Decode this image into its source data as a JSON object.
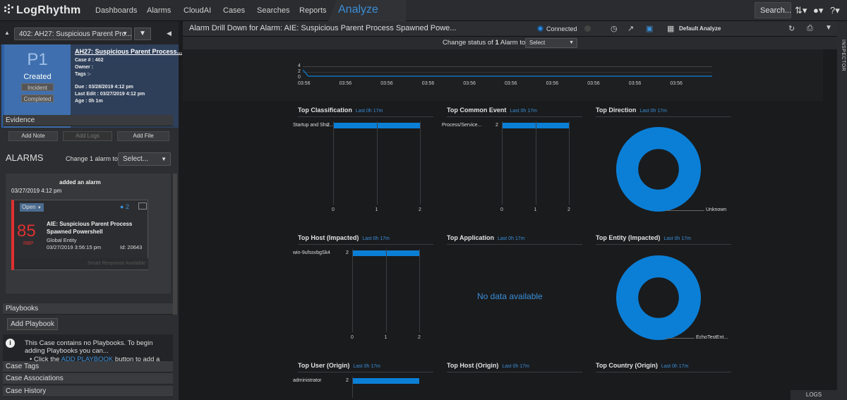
{
  "app": {
    "logo_text": "LogRhythm",
    "nav": [
      "Dashboards",
      "Alarms",
      "CloudAI",
      "Cases",
      "Searches",
      "Reports"
    ],
    "active_tab": "Analyze",
    "search_label": "Search..."
  },
  "sidebar": {
    "case_select": "402: AH27: Suspicious Parent Pro...",
    "case": {
      "priority": "P1",
      "status": "Created",
      "tag1": "Incident",
      "tag2": "Completed",
      "title": "AH27: Suspicious Parent Process...",
      "case_no": "Case # : 402",
      "owner": "Owner :",
      "tags": "Tags :-",
      "due": "Due : 03/28/2019 4:12 pm",
      "last_edit": "Last Edit : 03/27/2019 4:12 pm",
      "age": "Age : 0h 1m"
    },
    "evidence_label": "Evidence",
    "add_note": "Add Note",
    "add_logs": "Add Logs",
    "add_file": "Add File",
    "alarms_title": "ALARMS",
    "change_label": "Change 1 alarm to",
    "change_select": "Select...",
    "alarm_entry": {
      "action": "added an alarm",
      "date": "03/27/2019 4:12 pm",
      "status": "Open",
      "comments": "2",
      "score": "85",
      "score_label": "RBP",
      "name": "AIE: Suspicious Parent Process Spawned Powershell",
      "entity": "Global Entity",
      "timestamp": "03/27/2019 3:56:15 pm",
      "id_label": "Id: 20643",
      "footer": "Smart Response Available"
    },
    "playbooks_label": "Playbooks",
    "add_playbook": "Add Playbook",
    "playbook_info": "This Case contains no Playbooks. To begin adding Playbooks you can...",
    "playbook_bullet_pre": "Click the ",
    "playbook_link": "ADD PLAYBOOK",
    "playbook_bullet_post": " button to add a",
    "case_tags": "Case Tags",
    "case_assoc": "Case Associations",
    "case_history": "Case History"
  },
  "main": {
    "title": "Alarm Drill Down for Alarm: AIE: Suspicious Parent Process Spawned Powe...",
    "connected": "Connected",
    "default_analyze": "Default Analyze",
    "change_status_pre": "Change status of ",
    "change_status_count": "1",
    "change_status_post": " Alarm to",
    "status_select": "Select",
    "timeline": {
      "y_ticks": [
        "4",
        "2",
        "0"
      ],
      "x_ticks": [
        "03:56",
        "03:56",
        "03:56",
        "03:56",
        "03:56",
        "03:56",
        "03:56",
        "03:56",
        "03:56",
        "03:56"
      ]
    },
    "no_data": "No data available",
    "widgets": [
      {
        "title": "Top Classification",
        "sub": "Last 0h 17m"
      },
      {
        "title": "Top Common Event",
        "sub": "Last 0h 17m"
      },
      {
        "title": "Top Direction",
        "sub": "Last 0h 17m"
      },
      {
        "title": "Top Host (Impacted)",
        "sub": "Last 0h 17m"
      },
      {
        "title": "Top Application",
        "sub": "Last 0h 17m"
      },
      {
        "title": "Top Entity (Impacted)",
        "sub": "Last 0h 17m"
      },
      {
        "title": "Top User (Origin)",
        "sub": "Last 0h 17m"
      },
      {
        "title": "Top Host (Origin)",
        "sub": "Last 0h 17m"
      },
      {
        "title": "Top Country (Origin)",
        "sub": "Last 0h 17m"
      }
    ]
  },
  "inspector_label": "INSPECTOR",
  "logs_label": "LOGS",
  "colors": {
    "accent": "#0b7fd6",
    "case_red": "#e03030"
  },
  "chart_data": [
    {
      "type": "bar",
      "title": "Top Classification",
      "categories": [
        "Startup and Shu..."
      ],
      "values": [
        2
      ],
      "xlim": [
        0,
        2
      ],
      "x_ticks": [
        "0",
        "1",
        "2"
      ]
    },
    {
      "type": "bar",
      "title": "Top Common Event",
      "categories": [
        "Process/Service..."
      ],
      "values": [
        2
      ],
      "xlim": [
        0,
        2
      ],
      "x_ticks": [
        "0",
        "1",
        "2"
      ]
    },
    {
      "type": "pie",
      "title": "Top Direction",
      "categories": [
        "Unknown"
      ],
      "values": [
        2
      ]
    },
    {
      "type": "bar",
      "title": "Top Host (Impacted)",
      "categories": [
        "win-9ufssvbgSk4"
      ],
      "values": [
        2
      ],
      "xlim": [
        0,
        2
      ],
      "x_ticks": [
        "0",
        "1",
        "2"
      ]
    },
    {
      "type": "pie",
      "title": "Top Entity (Impacted)",
      "categories": [
        "EchoTestEnt..."
      ],
      "values": [
        2
      ]
    },
    {
      "type": "bar",
      "title": "Top User (Origin)",
      "categories": [
        "administrator"
      ],
      "values": [
        2
      ],
      "xlim": [
        0,
        2
      ]
    }
  ]
}
